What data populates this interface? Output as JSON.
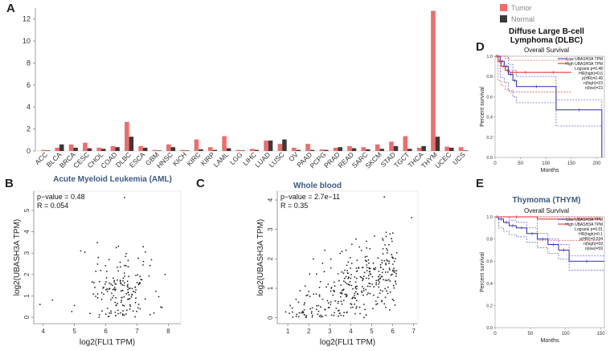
{
  "panel_letters": {
    "a": "A",
    "b": "B",
    "c": "C",
    "d": "D",
    "e": "E"
  },
  "colors": {
    "tumor": "#f26b6b",
    "normal": "#3a3a3a",
    "blue": "#3d5a80",
    "km_low": "#2b2bb5",
    "km_high": "#e02020"
  },
  "panel_d": {
    "title_line1": "Diffuse Large B-cell",
    "title_line2": "Lymphoma (DLBC)",
    "subtitle": "Overall Survival"
  },
  "panel_e": {
    "title": "Thymoma (THYM)",
    "subtitle": "Overall Survival"
  },
  "chart_data": [
    {
      "type": "bar",
      "id": "expression",
      "title": "",
      "legend": [
        "Tumor",
        "Normal"
      ],
      "legend_position": "top-right",
      "ylim": [
        0,
        13
      ],
      "yticks": [
        0,
        2,
        4,
        6,
        8,
        10,
        12
      ],
      "categories": [
        "ACC",
        "BLCA",
        "BRCA",
        "CESC",
        "CHOL",
        "COAD",
        "DLBC",
        "ESCA",
        "GBM",
        "HNSC",
        "KICH",
        "KIRC",
        "KIRP",
        "LAML",
        "LGG",
        "LIHC",
        "LUAD",
        "LUSC",
        "OV",
        "PAAD",
        "PCPG",
        "PRAD",
        "READ",
        "SARC",
        "SKCM",
        "STAD",
        "TGCT",
        "THCA",
        "THYM",
        "UCEC",
        "UCS"
      ],
      "series": [
        {
          "name": "Tumor",
          "values": [
            0.1,
            0.3,
            0.6,
            0.75,
            0.3,
            0.45,
            2.65,
            0.45,
            0.1,
            0.6,
            0.1,
            1.05,
            0.35,
            1.35,
            0.1,
            0.2,
            0.95,
            0.65,
            0.3,
            0.65,
            0.15,
            0.3,
            0.45,
            0.35,
            0.6,
            0.85,
            1.35,
            0.3,
            12.75,
            0.4,
            0.35
          ]
        },
        {
          "name": "Normal",
          "values": [
            0.05,
            0.6,
            0.3,
            0.25,
            0.2,
            0.35,
            1.3,
            0.3,
            0.05,
            0.35,
            0.05,
            0.15,
            0.1,
            0.25,
            0.05,
            0.1,
            0.95,
            1.05,
            0.1,
            0.1,
            0.1,
            0.35,
            0.25,
            0.15,
            0.2,
            0.45,
            0.2,
            0.45,
            1.3,
            0.3,
            0.05
          ]
        }
      ]
    },
    {
      "type": "scatter",
      "id": "aml",
      "title": "Acute Myeloid Leukemia (AML)",
      "xlabel": "log2(FLI1 TPM)",
      "ylabel": "log2(UBASH3A TPM)",
      "xlim": [
        3.7,
        8.4
      ],
      "ylim": [
        -0.3,
        5.9
      ],
      "xticks": [
        4,
        5,
        6,
        7,
        8
      ],
      "yticks": [
        0,
        1,
        2,
        3,
        4,
        5
      ],
      "annotations": [
        "p−value = 0.48",
        "R = 0.054"
      ]
    },
    {
      "type": "scatter",
      "id": "whole_blood",
      "title": "Whole blood",
      "xlabel": "log2(FLI1 TPM)",
      "ylabel": "log2(UBASH3A TPM)",
      "xlim": [
        0.5,
        7.2
      ],
      "ylim": [
        -0.2,
        4.3
      ],
      "xticks": [
        1,
        2,
        3,
        4,
        5,
        6,
        7
      ],
      "yticks": [
        0,
        1,
        2,
        3,
        4
      ],
      "annotations": [
        "p−value = 2.7e−11",
        "R = 0.35"
      ]
    },
    {
      "type": "line",
      "id": "km_dlbc",
      "xlabel": "Months",
      "ylabel": "Percent survival",
      "xlim": [
        0,
        215
      ],
      "ylim": [
        0,
        1
      ],
      "xticks": [
        0,
        50,
        100,
        150,
        200
      ],
      "yticks": [
        0.0,
        0.2,
        0.4,
        0.6,
        0.8,
        1.0
      ],
      "legend": [
        "Low UBASH3A TPM",
        "High UBASH3A TPM",
        "Logrank p=0.48",
        "HR(high)=0.6",
        "p(HR)=0.49",
        "n(high)=23",
        "n(low)=23"
      ],
      "series": [
        {
          "name": "Low UBASH3A TPM",
          "x": [
            0,
            10,
            18,
            26,
            35,
            42,
            120,
            210
          ],
          "y": [
            1.0,
            0.95,
            0.9,
            0.82,
            0.76,
            0.7,
            0.47,
            0.0
          ]
        },
        {
          "name": "High UBASH3A TPM",
          "x": [
            0,
            6,
            12,
            20,
            28,
            40,
            80,
            150
          ],
          "y": [
            1.0,
            0.95,
            0.9,
            0.86,
            0.84,
            0.84,
            0.84,
            0.84
          ]
        }
      ]
    },
    {
      "type": "line",
      "id": "km_thym",
      "xlabel": "Months",
      "ylabel": "Percent survival",
      "xlim": [
        0,
        155
      ],
      "ylim": [
        0,
        1
      ],
      "xticks": [
        0,
        50,
        100,
        150
      ],
      "yticks": [
        0.0,
        0.2,
        0.4,
        0.6,
        0.8,
        1.0
      ],
      "legend": [
        "Low UBASH3A TPM",
        "High UBASH3A TPM",
        "Logrank p=0.01",
        "HR(high)=0.1",
        "p(HR)=0.034",
        "n(high)=59",
        "n(low)=59"
      ],
      "series": [
        {
          "name": "Low UBASH3A TPM",
          "x": [
            0,
            5,
            12,
            20,
            30,
            45,
            60,
            75,
            90,
            105,
            155
          ],
          "y": [
            1.0,
            0.98,
            0.95,
            0.92,
            0.9,
            0.85,
            0.8,
            0.75,
            0.7,
            0.6,
            0.6
          ]
        },
        {
          "name": "High UBASH3A TPM",
          "x": [
            0,
            60,
            150
          ],
          "y": [
            1.0,
            0.98,
            0.98
          ]
        }
      ]
    }
  ]
}
